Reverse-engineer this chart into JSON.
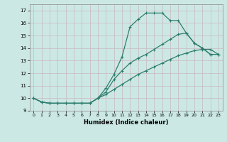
{
  "xlabel": "Humidex (Indice chaleur)",
  "bg_color": "#cce8e4",
  "grid_color": "#c8b8c0",
  "line_color": "#2e7d6e",
  "xlim": [
    -0.5,
    23.5
  ],
  "ylim": [
    9,
    17.5
  ],
  "yticks": [
    9,
    10,
    11,
    12,
    13,
    14,
    15,
    16,
    17
  ],
  "xticks": [
    0,
    1,
    2,
    3,
    4,
    5,
    6,
    7,
    8,
    9,
    10,
    11,
    12,
    13,
    14,
    15,
    16,
    17,
    18,
    19,
    20,
    21,
    22,
    23
  ],
  "line1_x": [
    0,
    1,
    2,
    3,
    4,
    5,
    6,
    7,
    8,
    9,
    10,
    11,
    12,
    13,
    14,
    15,
    16,
    17,
    18,
    19,
    20,
    21,
    22
  ],
  "line1_y": [
    10.0,
    9.7,
    9.6,
    9.6,
    9.6,
    9.6,
    9.6,
    9.6,
    10.0,
    10.8,
    11.9,
    13.3,
    15.7,
    16.3,
    16.8,
    16.8,
    16.8,
    16.2,
    16.2,
    15.2,
    14.4,
    14.0,
    13.5
  ],
  "line2_x": [
    0,
    1,
    2,
    3,
    4,
    5,
    6,
    7,
    8,
    9,
    10,
    11,
    12,
    13,
    14,
    15,
    16,
    17,
    18,
    19,
    20,
    21,
    22,
    23
  ],
  "line2_y": [
    10.0,
    9.7,
    9.6,
    9.6,
    9.6,
    9.6,
    9.6,
    9.6,
    10.0,
    10.5,
    11.5,
    12.2,
    12.8,
    13.2,
    13.5,
    13.9,
    14.3,
    14.7,
    15.1,
    15.2,
    14.4,
    14.0,
    13.5,
    13.5
  ],
  "line3_x": [
    0,
    1,
    2,
    3,
    4,
    5,
    6,
    7,
    8,
    9,
    10,
    11,
    12,
    13,
    14,
    15,
    16,
    17,
    18,
    19,
    20,
    21,
    22,
    23
  ],
  "line3_y": [
    10.0,
    9.7,
    9.6,
    9.6,
    9.6,
    9.6,
    9.6,
    9.6,
    10.0,
    10.3,
    10.7,
    11.1,
    11.5,
    11.9,
    12.2,
    12.5,
    12.8,
    13.1,
    13.4,
    13.6,
    13.8,
    13.9,
    13.9,
    13.5
  ]
}
